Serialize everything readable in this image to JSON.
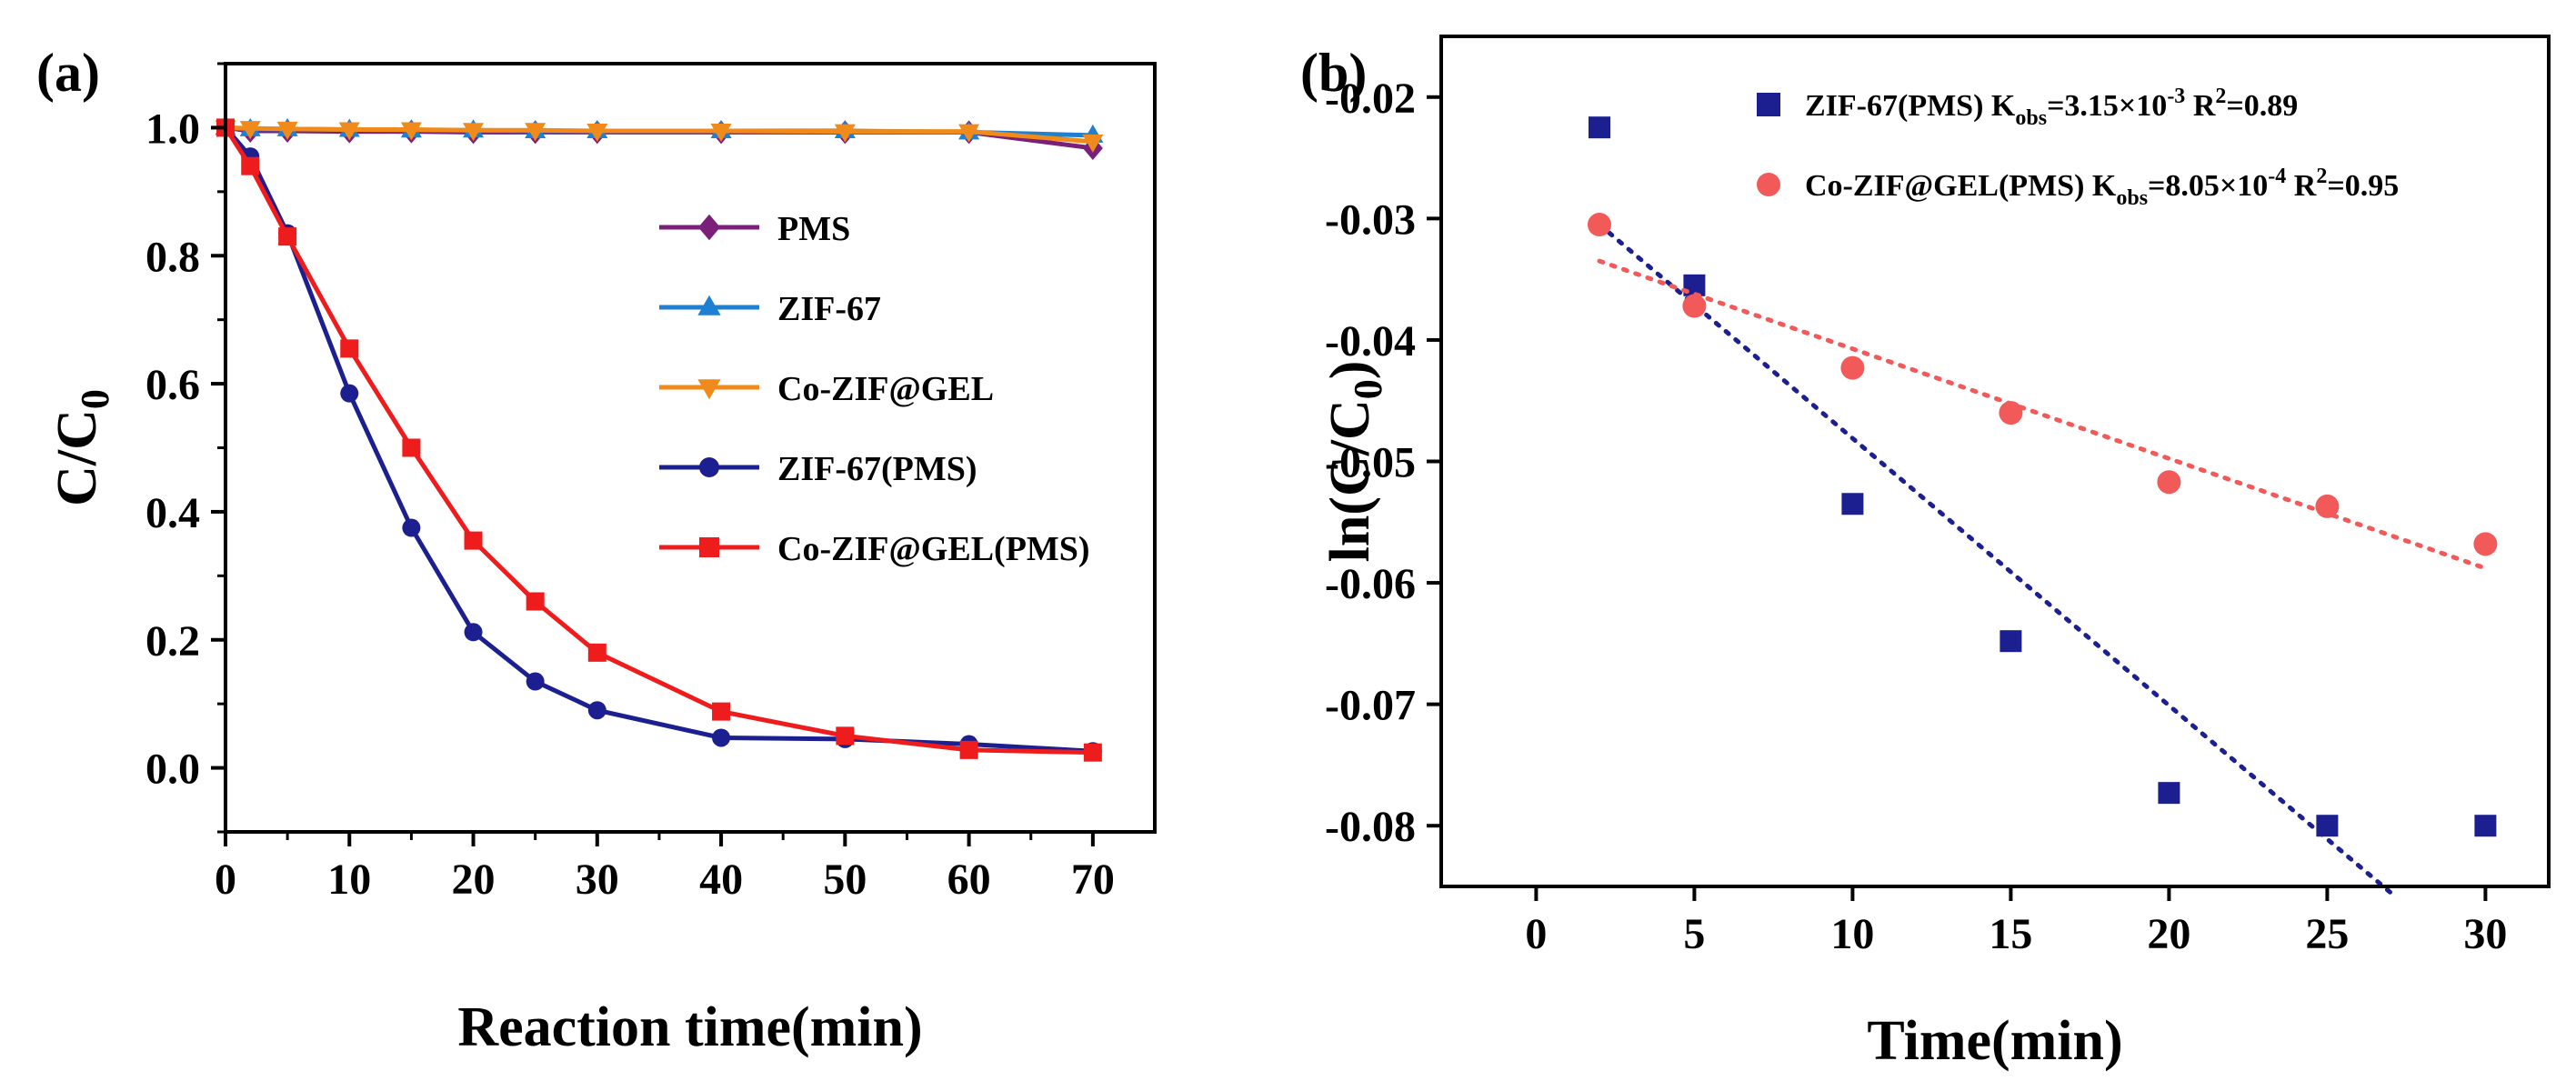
{
  "chart_data": [
    {
      "panel": "(a)",
      "type": "line",
      "xlabel": "Reaction time(min)",
      "ylabel": "C/C",
      "ylabel_sub": "0",
      "xlim": [
        0,
        75
      ],
      "ylim": [
        -0.1,
        1.1
      ],
      "xticks": [
        0,
        10,
        20,
        30,
        40,
        50,
        60,
        70
      ],
      "yticks": [
        0.0,
        0.2,
        0.4,
        0.6,
        0.8,
        1.0
      ],
      "ytick_labels": [
        "0.0",
        "0.2",
        "0.4",
        "0.6",
        "0.8",
        "1.0"
      ],
      "legend_position": "center-right",
      "series": [
        {
          "name": "PMS",
          "color": "#7a1f7a",
          "marker": "diamond",
          "x": [
            0,
            2,
            5,
            10,
            15,
            20,
            25,
            30,
            40,
            50,
            60,
            70
          ],
          "y": [
            1.0,
            0.995,
            0.995,
            0.994,
            0.994,
            0.993,
            0.993,
            0.993,
            0.993,
            0.993,
            0.993,
            0.968
          ]
        },
        {
          "name": "ZIF-67",
          "color": "#1f7fd0",
          "marker": "triangle-up",
          "x": [
            0,
            2,
            5,
            10,
            15,
            20,
            25,
            30,
            40,
            50,
            60,
            70
          ],
          "y": [
            1.0,
            0.998,
            0.998,
            0.997,
            0.996,
            0.996,
            0.995,
            0.995,
            0.995,
            0.995,
            0.993,
            0.988
          ]
        },
        {
          "name": "Co-ZIF@GEL",
          "color": "#f08a1a",
          "marker": "triangle-down",
          "x": [
            0,
            2,
            5,
            10,
            15,
            20,
            25,
            30,
            40,
            50,
            60,
            70
          ],
          "y": [
            1.0,
            0.999,
            0.998,
            0.997,
            0.997,
            0.996,
            0.996,
            0.995,
            0.995,
            0.994,
            0.994,
            0.978
          ]
        },
        {
          "name": "ZIF-67(PMS)",
          "color": "#1b1f8f",
          "marker": "circle",
          "x": [
            0,
            2,
            5,
            10,
            15,
            20,
            25,
            30,
            40,
            50,
            60,
            70
          ],
          "y": [
            1.0,
            0.955,
            0.835,
            0.585,
            0.375,
            0.212,
            0.135,
            0.09,
            0.047,
            0.045,
            0.037,
            0.026
          ]
        },
        {
          "name": "Co-ZIF@GEL(PMS)",
          "color": "#ee1c1c",
          "marker": "square",
          "x": [
            0,
            2,
            5,
            10,
            15,
            20,
            25,
            30,
            40,
            50,
            60,
            70
          ],
          "y": [
            1.0,
            0.94,
            0.83,
            0.655,
            0.5,
            0.355,
            0.26,
            0.18,
            0.088,
            0.05,
            0.028,
            0.024
          ]
        }
      ]
    },
    {
      "panel": "(b)",
      "type": "scatter",
      "xlabel": "Time(min)",
      "ylabel": "ln(C/C",
      "ylabel_sub": "0",
      "ylabel_close": ")",
      "xlim": [
        -3,
        32
      ],
      "ylim": [
        -0.085,
        -0.015
      ],
      "xticks": [
        0,
        5,
        10,
        15,
        20,
        25,
        30
      ],
      "yticks": [
        -0.02,
        -0.03,
        -0.04,
        -0.05,
        -0.06,
        -0.07,
        -0.08
      ],
      "ytick_labels": [
        "-0.02",
        "-0.03",
        "-0.04",
        "-0.05",
        "-0.06",
        "-0.07",
        "-0.08"
      ],
      "legend_position": "top",
      "series": [
        {
          "name": "ZIF-67(PMS)",
          "color": "#1b1f8f",
          "marker": "square",
          "k_label": "K",
          "k_sub": "obs",
          "k_value": "=3.15×10",
          "k_exp": "-3",
          "r2_label": "R",
          "r2_sup": "2",
          "r2_value": "=0.89",
          "x": [
            2,
            5,
            10,
            15,
            20,
            25,
            30
          ],
          "y": [
            -0.0225,
            -0.0355,
            -0.0535,
            -0.0648,
            -0.0773,
            -0.08,
            -0.08
          ],
          "fit": {
            "x": [
              2,
              27
            ],
            "y": [
              -0.0305,
              -0.0855
            ]
          }
        },
        {
          "name": "Co-ZIF@GEL(PMS)",
          "color": "#f25a5a",
          "marker": "circle",
          "k_label": "K",
          "k_sub": "obs",
          "k_value": "=8.05×10",
          "k_exp": "-4",
          "r2_label": "R",
          "r2_sup": "2",
          "r2_value": "=0.95",
          "x": [
            2,
            5,
            10,
            15,
            20,
            25,
            30
          ],
          "y": [
            -0.0305,
            -0.0372,
            -0.0423,
            -0.046,
            -0.0517,
            -0.0537,
            -0.0568
          ],
          "fit": {
            "x": [
              2,
              30
            ],
            "y": [
              -0.0335,
              -0.0588
            ]
          }
        }
      ]
    }
  ]
}
